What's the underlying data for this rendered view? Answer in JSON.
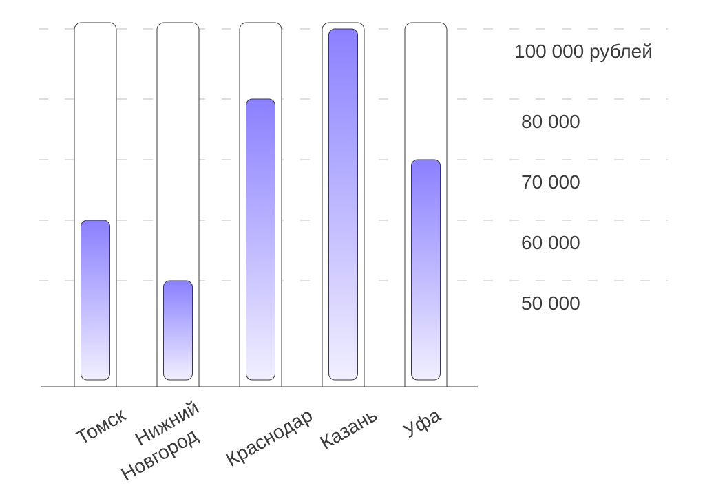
{
  "chart_data": {
    "type": "bar",
    "title": "",
    "xlabel": "",
    "ylabel": "",
    "unit": "рублей",
    "categories": [
      "Томск",
      "Нижний Новгород",
      "Краснодар",
      "Казань",
      "Уфа"
    ],
    "category_lines": [
      [
        "Томск"
      ],
      [
        "Нижний",
        "Новгород"
      ],
      [
        "Краснодар"
      ],
      [
        "Казань"
      ],
      [
        "Уфа"
      ]
    ],
    "values": [
      60000,
      50000,
      80000,
      100000,
      70000
    ],
    "yticks": [
      {
        "value": 100000,
        "label": "100 000 рублей"
      },
      {
        "value": 80000,
        "label": "80 000"
      },
      {
        "value": 70000,
        "label": "70 000"
      },
      {
        "value": 60000,
        "label": "60 000"
      },
      {
        "value": 50000,
        "label": "50 000"
      }
    ],
    "grid": true,
    "colors": {
      "bar_top": "#8a80ff",
      "bar_bottom": "#f1efff",
      "outline": "#3a3a3a",
      "grid": "#bdbdbd",
      "text": "#3a3a3a"
    }
  }
}
